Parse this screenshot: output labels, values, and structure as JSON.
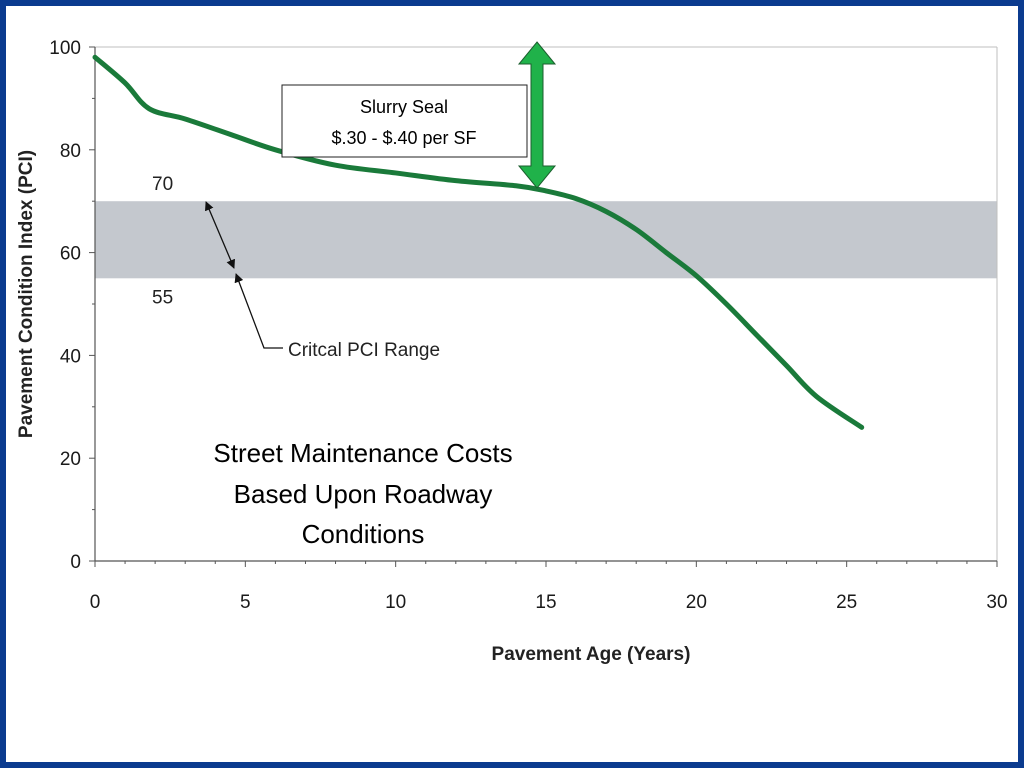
{
  "colors": {
    "frame": "#0b3b8f",
    "curve": "#1a7a3a",
    "band": "#c4c8ce",
    "arrow": "#20b24a"
  },
  "callout": {
    "line1": "Slurry Seal",
    "line2": "$.30 - $.40 per SF"
  },
  "caption": {
    "line1": "Street Maintenance Costs",
    "line2": "Based Upon Roadway",
    "line3": "Conditions"
  },
  "chart_data": {
    "type": "line",
    "xlabel": "Pavement Age (Years)",
    "ylabel": "Pavement Condition Index (PCI)",
    "xlim": [
      0,
      30
    ],
    "ylim": [
      0,
      100
    ],
    "x_ticks": [
      0,
      5,
      10,
      15,
      20,
      25,
      30
    ],
    "y_ticks": [
      0,
      20,
      40,
      60,
      80,
      100
    ],
    "grid": false,
    "series": [
      {
        "x": [
          0,
          1,
          1.8,
          3,
          4.5,
          6,
          8,
          10,
          12,
          14,
          15,
          16,
          17,
          18,
          19,
          20,
          21,
          22,
          23,
          24,
          25.5
        ],
        "y": [
          98,
          93,
          88,
          86,
          83,
          80,
          77,
          75.5,
          74,
          73,
          72,
          70.5,
          68,
          64.5,
          60,
          55.5,
          50,
          44,
          38,
          32,
          26
        ]
      }
    ],
    "critical_range": {
      "y_low": 55,
      "y_high": 70,
      "low_label": "55",
      "high_label": "70",
      "label": "Critcal PCI Range"
    }
  }
}
